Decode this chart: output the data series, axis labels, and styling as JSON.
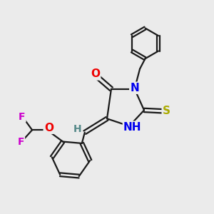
{
  "bg_color": "#ebebeb",
  "bond_color": "#1a1a1a",
  "bond_lw": 1.6,
  "atom_colors": {
    "O": "#ee0000",
    "N": "#0000ee",
    "S": "#aaaa00",
    "F": "#cc00cc",
    "H_gray": "#558888",
    "C": "#1a1a1a"
  },
  "font_size_atom": 11,
  "font_size_small": 9
}
